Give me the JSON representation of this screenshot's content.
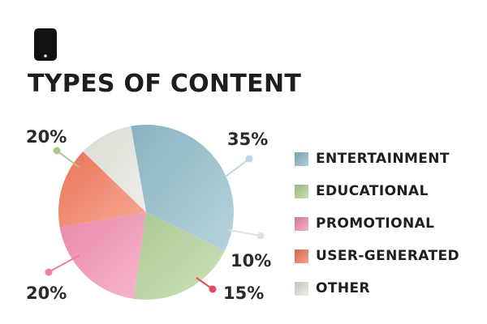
{
  "header": {
    "icon": "phone-icon",
    "title": "TYPES OF CONTENT"
  },
  "chart_data": {
    "type": "pie",
    "title": "TYPES OF CONTENT",
    "categories": [
      "ENTERTAINMENT",
      "EDUCATIONAL",
      "PROMOTIONAL",
      "USER-GENERATED",
      "OTHER"
    ],
    "values": [
      35,
      20,
      20,
      15,
      10
    ],
    "labels": [
      "35%",
      "20%",
      "20%",
      "15%",
      "10%"
    ],
    "colors": [
      "#8fbccb",
      "#b3d399",
      "#f48fb0",
      "#f47a5c",
      "#e7e5dd"
    ],
    "legend_position": "right"
  }
}
